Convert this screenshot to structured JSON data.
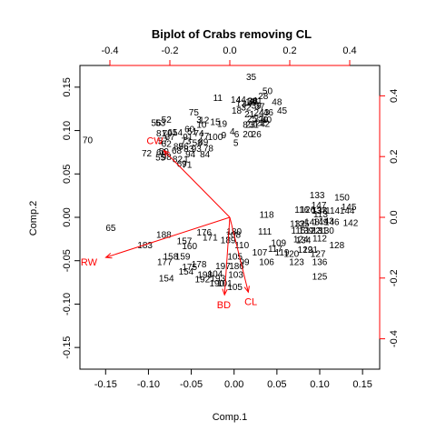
{
  "chart_data": {
    "type": "scatter",
    "title": "Biplot of Crabs removing CL",
    "xlabel": "Comp.1",
    "ylabel": "Comp.2",
    "xlim": [
      -0.18,
      0.17
    ],
    "ylim": [
      -0.175,
      0.175
    ],
    "x_ticks": [
      "-0.15",
      "-0.10",
      "-0.05",
      "0.00",
      "0.05",
      "0.10",
      "0.15"
    ],
    "y_ticks": [
      "-0.15",
      "-0.10",
      "-0.05",
      "0.00",
      "0.05",
      "0.10",
      "0.15"
    ],
    "top_axis_ticks": [
      "-0.4",
      "-0.2",
      "0.0",
      "0.2",
      "0.4"
    ],
    "right_axis_ticks": [
      "-0.4",
      "-0.2",
      "0.0",
      "0.2",
      "0.4"
    ],
    "loading_range": [
      -0.5,
      0.5
    ],
    "loadings": [
      {
        "name": "RW",
        "x": -0.47,
        "y": -0.15
      },
      {
        "name": "CW",
        "x": -0.25,
        "y": 0.25
      },
      {
        "name": "BD",
        "x": -0.02,
        "y": -0.29
      },
      {
        "name": "CL",
        "x": 0.07,
        "y": -0.28
      }
    ],
    "points": [
      {
        "label": "35",
        "x": 0.02,
        "y": 0.161
      },
      {
        "label": "50",
        "x": 0.039,
        "y": 0.145
      },
      {
        "label": "28",
        "x": 0.034,
        "y": 0.139
      },
      {
        "label": "11",
        "x": -0.019,
        "y": 0.137
      },
      {
        "label": "14",
        "x": 0.002,
        "y": 0.135
      },
      {
        "label": "44",
        "x": 0.008,
        "y": 0.135
      },
      {
        "label": "30",
        "x": 0.021,
        "y": 0.133
      },
      {
        "label": "13",
        "x": 0.019,
        "y": 0.132
      },
      {
        "label": "38",
        "x": 0.022,
        "y": 0.133
      },
      {
        "label": "41",
        "x": 0.027,
        "y": 0.134
      },
      {
        "label": "48",
        "x": 0.05,
        "y": 0.132
      },
      {
        "label": "17",
        "x": 0.008,
        "y": 0.13
      },
      {
        "label": "34",
        "x": 0.015,
        "y": 0.13
      },
      {
        "label": "32",
        "x": 0.014,
        "y": 0.126
      },
      {
        "label": "39",
        "x": 0.026,
        "y": 0.128
      },
      {
        "label": "37",
        "x": 0.03,
        "y": 0.127
      },
      {
        "label": "18",
        "x": 0.003,
        "y": 0.122
      },
      {
        "label": "45",
        "x": 0.056,
        "y": 0.122
      },
      {
        "label": "24",
        "x": 0.029,
        "y": 0.12
      },
      {
        "label": "43",
        "x": 0.035,
        "y": 0.12
      },
      {
        "label": "46",
        "x": 0.04,
        "y": 0.12
      },
      {
        "label": "21",
        "x": 0.018,
        "y": 0.118
      },
      {
        "label": "25",
        "x": 0.021,
        "y": 0.113
      },
      {
        "label": "27",
        "x": 0.029,
        "y": 0.113
      },
      {
        "label": "29",
        "x": 0.034,
        "y": 0.112
      },
      {
        "label": "40",
        "x": 0.038,
        "y": 0.112
      },
      {
        "label": "22",
        "x": 0.031,
        "y": 0.108
      },
      {
        "label": "42",
        "x": 0.036,
        "y": 0.107
      },
      {
        "label": "8",
        "x": 0.013,
        "y": 0.106
      },
      {
        "label": "23",
        "x": 0.019,
        "y": 0.106
      },
      {
        "label": "31",
        "x": 0.023,
        "y": 0.106
      },
      {
        "label": "19",
        "x": -0.014,
        "y": 0.107
      },
      {
        "label": "15",
        "x": -0.022,
        "y": 0.109
      },
      {
        "label": "52",
        "x": -0.079,
        "y": 0.112
      },
      {
        "label": "75",
        "x": -0.047,
        "y": 0.12
      },
      {
        "label": "12",
        "x": -0.035,
        "y": 0.111
      },
      {
        "label": "3",
        "x": -0.041,
        "y": 0.112
      },
      {
        "label": "10",
        "x": -0.038,
        "y": 0.106
      },
      {
        "label": "56",
        "x": -0.091,
        "y": 0.108
      },
      {
        "label": "53",
        "x": -0.086,
        "y": 0.108
      },
      {
        "label": "CW-pt",
        "x": -0.06,
        "y": 0.109,
        "hidden": true
      },
      {
        "label": "60",
        "x": -0.052,
        "y": 0.101
      },
      {
        "label": "51",
        "x": -0.049,
        "y": 0.098
      },
      {
        "label": "4",
        "x": -0.002,
        "y": 0.098
      },
      {
        "label": "6",
        "x": 0.003,
        "y": 0.095
      },
      {
        "label": "20",
        "x": 0.016,
        "y": 0.095
      },
      {
        "label": "26",
        "x": 0.026,
        "y": 0.095
      },
      {
        "label": "9",
        "x": -0.012,
        "y": 0.094
      },
      {
        "label": "74",
        "x": -0.041,
        "y": 0.096
      },
      {
        "label": "81",
        "x": -0.085,
        "y": 0.096
      },
      {
        "label": "79",
        "x": -0.078,
        "y": 0.096
      },
      {
        "label": "61",
        "x": -0.072,
        "y": 0.097
      },
      {
        "label": "54",
        "x": -0.066,
        "y": 0.097
      },
      {
        "label": "67",
        "x": -0.075,
        "y": 0.092
      },
      {
        "label": "77",
        "x": -0.035,
        "y": 0.093
      },
      {
        "label": "100",
        "x": -0.022,
        "y": 0.092
      },
      {
        "label": "91",
        "x": -0.054,
        "y": 0.092
      },
      {
        "label": "70",
        "x": -0.171,
        "y": 0.088
      },
      {
        "label": "57",
        "x": -0.083,
        "y": 0.087
      },
      {
        "label": "62",
        "x": -0.079,
        "y": 0.084
      },
      {
        "label": "73",
        "x": -0.056,
        "y": 0.087
      },
      {
        "label": "89",
        "x": -0.036,
        "y": 0.086
      },
      {
        "label": "5",
        "x": 0.002,
        "y": 0.085
      },
      {
        "label": "58",
        "x": -0.043,
        "y": 0.085
      },
      {
        "label": "96",
        "x": -0.059,
        "y": 0.081
      },
      {
        "label": "85",
        "x": -0.065,
        "y": 0.081
      },
      {
        "label": "93",
        "x": -0.044,
        "y": 0.078
      },
      {
        "label": "83",
        "x": -0.053,
        "y": 0.078
      },
      {
        "label": "78",
        "x": -0.03,
        "y": 0.079
      },
      {
        "label": "68",
        "x": -0.067,
        "y": 0.076
      },
      {
        "label": "59",
        "x": -0.082,
        "y": 0.075
      },
      {
        "label": "72",
        "x": -0.102,
        "y": 0.073
      },
      {
        "label": "66",
        "x": -0.085,
        "y": 0.074
      },
      {
        "label": "94",
        "x": -0.051,
        "y": 0.072
      },
      {
        "label": "84",
        "x": -0.034,
        "y": 0.072
      },
      {
        "label": "55",
        "x": -0.086,
        "y": 0.068
      },
      {
        "label": "98",
        "x": -0.079,
        "y": 0.069
      },
      {
        "label": "82",
        "x": -0.066,
        "y": 0.066
      },
      {
        "label": "1",
        "x": -0.056,
        "y": 0.066
      },
      {
        "label": "69",
        "x": -0.061,
        "y": 0.061
      },
      {
        "label": "71",
        "x": -0.055,
        "y": 0.06
      },
      {
        "label": "65",
        "x": -0.144,
        "y": -0.013
      },
      {
        "label": "118",
        "x": 0.038,
        "y": 0.002
      },
      {
        "label": "133",
        "x": 0.097,
        "y": 0.025
      },
      {
        "label": "150",
        "x": 0.126,
        "y": 0.022
      },
      {
        "label": "147",
        "x": 0.099,
        "y": 0.013
      },
      {
        "label": "137",
        "x": 0.099,
        "y": 0.007
      },
      {
        "label": "145",
        "x": 0.134,
        "y": 0.011
      },
      {
        "label": "116",
        "x": 0.079,
        "y": 0.008
      },
      {
        "label": "126",
        "x": 0.086,
        "y": 0.008
      },
      {
        "label": "138",
        "x": 0.1,
        "y": 0.007
      },
      {
        "label": "114",
        "x": 0.115,
        "y": 0.007
      },
      {
        "label": "144",
        "x": 0.132,
        "y": 0.007
      },
      {
        "label": "113",
        "x": 0.101,
        "y": 0.003
      },
      {
        "label": "132",
        "x": 0.074,
        "y": -0.008
      },
      {
        "label": "148",
        "x": 0.091,
        "y": -0.006
      },
      {
        "label": "146",
        "x": 0.114,
        "y": -0.006
      },
      {
        "label": "142",
        "x": 0.136,
        "y": -0.007
      },
      {
        "label": "149",
        "x": 0.101,
        "y": -0.006
      },
      {
        "label": "143",
        "x": 0.108,
        "y": -0.005
      },
      {
        "label": "135",
        "x": 0.079,
        "y": -0.008
      },
      {
        "label": "115",
        "x": 0.075,
        "y": -0.016
      },
      {
        "label": "122",
        "x": 0.092,
        "y": -0.016
      },
      {
        "label": "131",
        "x": 0.1,
        "y": -0.016
      },
      {
        "label": "130",
        "x": 0.108,
        "y": -0.016
      },
      {
        "label": "139",
        "x": 0.084,
        "y": -0.016
      },
      {
        "label": "124",
        "x": 0.078,
        "y": -0.026
      },
      {
        "label": "112",
        "x": 0.1,
        "y": -0.025
      },
      {
        "label": "134",
        "x": 0.081,
        "y": -0.027
      },
      {
        "label": "111",
        "x": 0.036,
        "y": -0.017
      },
      {
        "label": "128",
        "x": 0.12,
        "y": -0.033
      },
      {
        "label": "129",
        "x": 0.083,
        "y": -0.038
      },
      {
        "label": "121",
        "x": 0.089,
        "y": -0.038
      },
      {
        "label": "127",
        "x": 0.098,
        "y": -0.043
      },
      {
        "label": "120",
        "x": 0.067,
        "y": -0.043
      },
      {
        "label": "109",
        "x": 0.052,
        "y": -0.03
      },
      {
        "label": "117",
        "x": 0.048,
        "y": -0.037
      },
      {
        "label": "119",
        "x": 0.056,
        "y": -0.041
      },
      {
        "label": "107",
        "x": 0.03,
        "y": -0.041
      },
      {
        "label": "116b",
        "x": 0.048,
        "y": -0.047,
        "hidden": true
      },
      {
        "label": "123",
        "x": 0.073,
        "y": -0.052
      },
      {
        "label": "136",
        "x": 0.1,
        "y": -0.052
      },
      {
        "label": "125",
        "x": 0.1,
        "y": -0.069
      },
      {
        "label": "180",
        "x": 0.0,
        "y": -0.017
      },
      {
        "label": "108",
        "x": -0.001,
        "y": -0.021
      },
      {
        "label": "188",
        "x": -0.082,
        "y": -0.021
      },
      {
        "label": "176",
        "x": -0.035,
        "y": -0.018
      },
      {
        "label": "171",
        "x": -0.028,
        "y": -0.024
      },
      {
        "label": "189",
        "x": -0.007,
        "y": -0.027
      },
      {
        "label": "157",
        "x": -0.058,
        "y": -0.028
      },
      {
        "label": "183",
        "x": -0.104,
        "y": -0.033
      },
      {
        "label": "110",
        "x": 0.009,
        "y": -0.033
      },
      {
        "label": "160",
        "x": -0.052,
        "y": -0.034
      },
      {
        "label": "105",
        "x": 0.001,
        "y": -0.046
      },
      {
        "label": "99",
        "x": 0.012,
        "y": -0.052
      },
      {
        "label": "106",
        "x": 0.038,
        "y": -0.052
      },
      {
        "label": "197",
        "x": -0.013,
        "y": -0.057
      },
      {
        "label": "186",
        "x": 0.003,
        "y": -0.057
      },
      {
        "label": "178",
        "x": -0.041,
        "y": -0.055
      },
      {
        "label": "175",
        "x": -0.052,
        "y": -0.058
      },
      {
        "label": "154",
        "x": -0.056,
        "y": -0.063
      },
      {
        "label": "103",
        "x": 0.002,
        "y": -0.067
      },
      {
        "label": "104",
        "x": -0.022,
        "y": -0.066
      },
      {
        "label": "198",
        "x": -0.034,
        "y": -0.067
      },
      {
        "label": "192",
        "x": -0.037,
        "y": -0.072
      },
      {
        "label": "193",
        "x": -0.019,
        "y": -0.071
      },
      {
        "label": "154b",
        "x": -0.079,
        "y": -0.071,
        "label_text": "154"
      },
      {
        "label": "101",
        "x": -0.011,
        "y": -0.077
      },
      {
        "label": "190",
        "x": -0.02,
        "y": -0.077
      },
      {
        "label": "105b",
        "x": 0.001,
        "y": -0.081,
        "label_text": "105"
      },
      {
        "label": "177",
        "x": -0.081,
        "y": -0.052
      },
      {
        "label": "159",
        "x": -0.06,
        "y": -0.046
      },
      {
        "label": "158",
        "x": -0.074,
        "y": -0.046
      }
    ],
    "grid": false
  }
}
